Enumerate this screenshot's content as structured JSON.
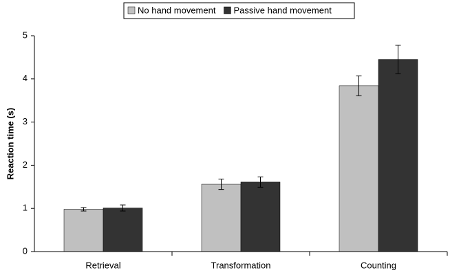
{
  "chart_data": {
    "type": "bar",
    "y_label": "Reaction time (s)",
    "categories": [
      "Retrieval",
      "Transformation",
      "Counting"
    ],
    "series": [
      {
        "name": "No hand movement",
        "color": "#c0c0c0",
        "values": [
          0.98,
          1.56,
          3.84
        ],
        "errors": [
          0.04,
          0.12,
          0.23
        ]
      },
      {
        "name": "Passive hand movement",
        "color": "#333333",
        "values": [
          1.01,
          1.61,
          4.45
        ],
        "errors": [
          0.07,
          0.12,
          0.33
        ]
      }
    ],
    "ylim": [
      0,
      5
    ],
    "yticks": [
      0,
      1,
      2,
      3,
      4,
      5
    ],
    "grid": false,
    "legend": "top"
  }
}
